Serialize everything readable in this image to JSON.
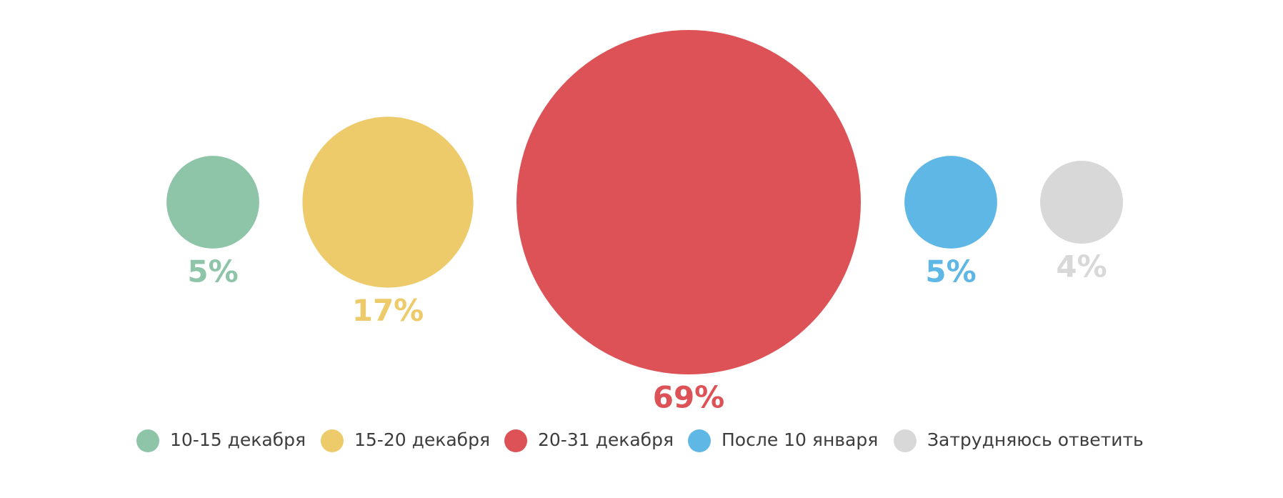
{
  "chart_data": {
    "type": "bubble",
    "values": [
      5,
      17,
      69,
      5,
      4
    ],
    "data_labels": [
      "5%",
      "17%",
      "69%",
      "5%",
      "4%"
    ],
    "legend": {
      "position": "bottom",
      "entries": [
        "10-15 декабря",
        "15-20 декабря",
        "20-31 декабря",
        "После 10 января",
        "Затрудняюсь ответить"
      ]
    },
    "colors": [
      "#8ec5a9",
      "#eecb6a",
      "#dc5256",
      "#5eb7e5",
      "#d9d8d9"
    ]
  }
}
